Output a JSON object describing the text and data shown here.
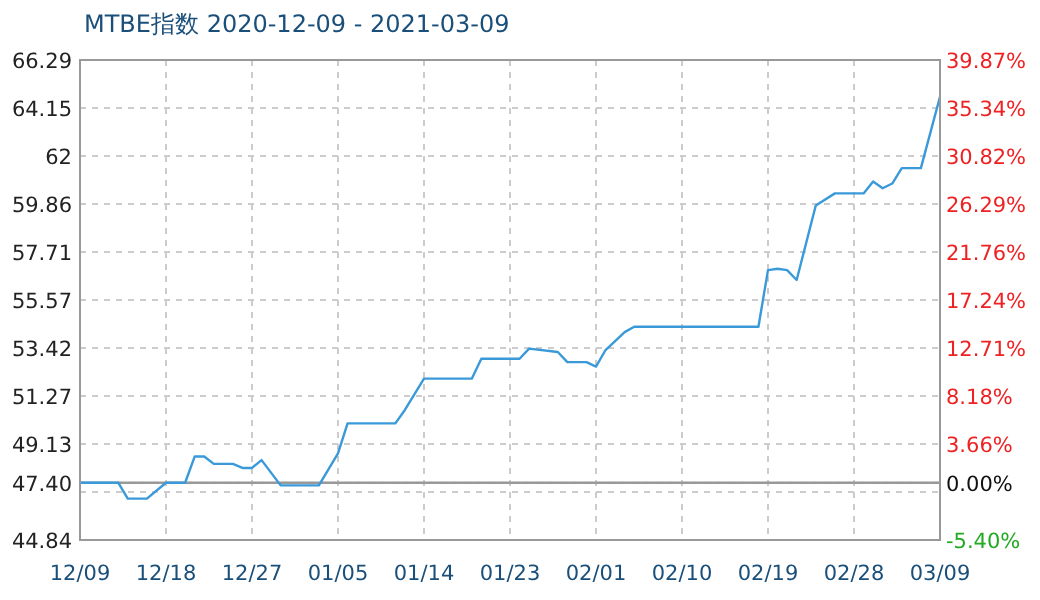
{
  "chart_data": {
    "type": "line",
    "title": "MTBE指数 2020-12-09 - 2021-03-09",
    "xlim": [
      "2020-12-09",
      "2021-03-09"
    ],
    "xticks": [
      {
        "value": "2020-12-09",
        "label": "12/09"
      },
      {
        "value": "2020-12-18",
        "label": "12/18"
      },
      {
        "value": "2020-12-27",
        "label": "12/27"
      },
      {
        "value": "2021-01-05",
        "label": "01/05"
      },
      {
        "value": "2021-01-14",
        "label": "01/14"
      },
      {
        "value": "2021-01-23",
        "label": "01/23"
      },
      {
        "value": "2021-02-01",
        "label": "02/01"
      },
      {
        "value": "2021-02-10",
        "label": "02/10"
      },
      {
        "value": "2021-02-19",
        "label": "02/19"
      },
      {
        "value": "2021-02-28",
        "label": "02/28"
      },
      {
        "value": "2021-03-09",
        "label": "03/09"
      }
    ],
    "ylim": [
      44.84,
      66.29
    ],
    "yticks": [
      {
        "value": 44.84,
        "label": "44.84"
      },
      {
        "value": 46.985,
        "label": null
      },
      {
        "value": 47.4,
        "label": "47.40"
      },
      {
        "value": 49.13,
        "label": "49.13"
      },
      {
        "value": 51.275,
        "label": "51.27"
      },
      {
        "value": 53.42,
        "label": "53.42"
      },
      {
        "value": 55.565,
        "label": "55.57"
      },
      {
        "value": 57.71,
        "label": "57.71"
      },
      {
        "value": 59.855,
        "label": "59.86"
      },
      {
        "value": 62.0,
        "label": "62"
      },
      {
        "value": 64.145,
        "label": "64.15"
      },
      {
        "value": 66.29,
        "label": "66.29"
      }
    ],
    "y2lim": [
      -5.4,
      39.87
    ],
    "y2ticks": [
      {
        "value": -5.4,
        "label": "-5.40%"
      },
      {
        "value": 0,
        "label": "0.00%"
      },
      {
        "value": 3.66,
        "label": "3.66%"
      },
      {
        "value": 8.18,
        "label": "8.18%"
      },
      {
        "value": 12.71,
        "label": "12.71%"
      },
      {
        "value": 17.24,
        "label": "17.24%"
      },
      {
        "value": 21.76,
        "label": "21.76%"
      },
      {
        "value": 26.29,
        "label": "26.29%"
      },
      {
        "value": 30.82,
        "label": "30.82%"
      },
      {
        "value": 35.34,
        "label": "35.34%"
      },
      {
        "value": 39.87,
        "label": "39.87%"
      }
    ],
    "grid": true,
    "ref_lines": [
      {
        "axis": "y",
        "value": 47.4,
        "color": "#999999",
        "line_style": "solid"
      }
    ],
    "series": [
      {
        "color": "#3a9ad9",
        "x": [
          "2020-12-09",
          "2020-12-13",
          "2020-12-14",
          "2020-12-16",
          "2020-12-18",
          "2020-12-20",
          "2020-12-21",
          "2020-12-22",
          "2020-12-23",
          "2020-12-25",
          "2020-12-26",
          "2020-12-27",
          "2020-12-28",
          "2020-12-30",
          "2021-01-03",
          "2021-01-05",
          "2021-01-06",
          "2021-01-11",
          "2021-01-12",
          "2021-01-14",
          "2021-01-19",
          "2021-01-20",
          "2021-01-24",
          "2021-01-25",
          "2021-01-28",
          "2021-01-29",
          "2021-01-31",
          "2021-02-01",
          "2021-02-02",
          "2021-02-04",
          "2021-02-05",
          "2021-02-18",
          "2021-02-19",
          "2021-02-20",
          "2021-02-21",
          "2021-02-22",
          "2021-02-24",
          "2021-02-26",
          "2021-03-01",
          "2021-03-02",
          "2021-03-03",
          "2021-03-04",
          "2021-03-05",
          "2021-03-07",
          "2021-03-09"
        ],
        "values": [
          47.4,
          47.4,
          46.69,
          46.69,
          47.4,
          47.4,
          48.57,
          48.57,
          48.24,
          48.24,
          48.06,
          48.06,
          48.41,
          47.28,
          47.28,
          48.71,
          50.05,
          50.05,
          50.65,
          52.05,
          52.05,
          52.94,
          52.94,
          53.39,
          53.24,
          52.79,
          52.79,
          52.59,
          53.33,
          54.13,
          54.37,
          54.37,
          56.9,
          56.96,
          56.9,
          56.46,
          59.79,
          60.33,
          60.33,
          60.86,
          60.56,
          60.77,
          61.46,
          61.46,
          64.65
        ]
      }
    ]
  }
}
